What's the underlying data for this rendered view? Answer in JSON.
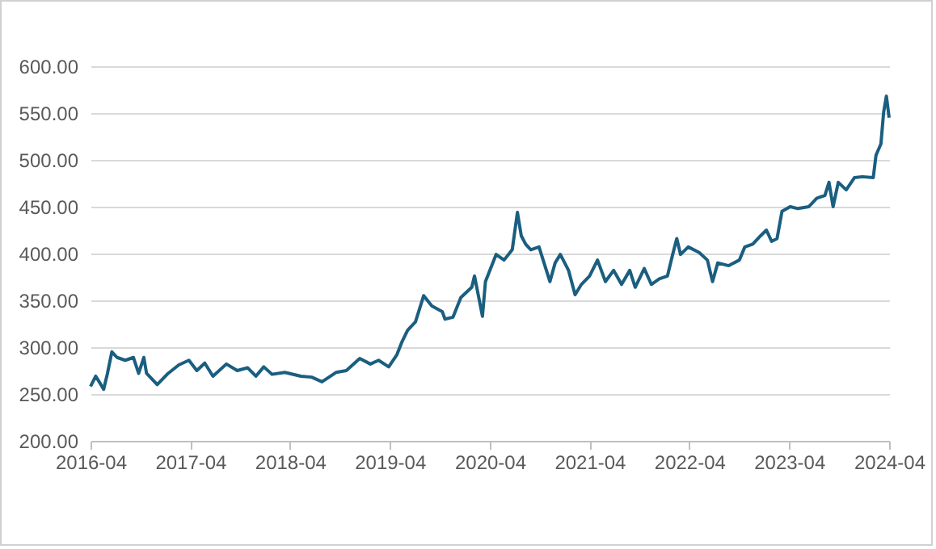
{
  "chart_data": {
    "type": "line",
    "x": [
      "2016-04-01",
      "2016-04-20",
      "2016-05-09",
      "2016-05-19",
      "2016-06-02",
      "2016-06-18",
      "2016-07-07",
      "2016-08-06",
      "2016-09-05",
      "2016-09-24",
      "2016-10-13",
      "2016-10-23",
      "2016-12-01",
      "2017-01-10",
      "2017-02-18",
      "2017-03-27",
      "2017-04-25",
      "2017-05-24",
      "2017-06-23",
      "2017-08-11",
      "2017-09-20",
      "2017-10-28",
      "2017-11-27",
      "2017-12-26",
      "2018-01-25",
      "2018-03-13",
      "2018-05-11",
      "2018-06-19",
      "2018-07-27",
      "2018-09-16",
      "2018-10-24",
      "2018-12-12",
      "2019-01-20",
      "2019-02-19",
      "2019-03-28",
      "2019-04-27",
      "2019-05-16",
      "2019-06-05",
      "2019-07-04",
      "2019-08-03",
      "2019-09-02",
      "2019-10-10",
      "2019-10-20",
      "2019-11-18",
      "2019-12-17",
      "2020-01-26",
      "2020-02-05",
      "2020-03-05",
      "2020-03-16",
      "2020-04-24",
      "2020-05-23",
      "2020-06-22",
      "2020-07-11",
      "2020-07-25",
      "2020-08-10",
      "2020-08-29",
      "2020-09-28",
      "2020-11-07",
      "2020-11-26",
      "2020-12-15",
      "2021-01-14",
      "2021-02-07",
      "2021-03-02",
      "2021-04-01",
      "2021-04-30",
      "2021-05-29",
      "2021-06-28",
      "2021-07-27",
      "2021-08-26",
      "2021-09-15",
      "2021-10-18",
      "2021-11-13",
      "2021-12-12",
      "2022-01-11",
      "2022-01-30",
      "2022-02-14",
      "2022-02-28",
      "2022-03-28",
      "2022-05-07",
      "2022-06-06",
      "2022-06-25",
      "2022-07-14",
      "2022-08-23",
      "2022-10-01",
      "2022-10-21",
      "2022-11-19",
      "2022-12-18",
      "2023-01-08",
      "2023-01-27",
      "2023-02-16",
      "2023-03-06",
      "2023-04-05",
      "2023-05-03",
      "2023-06-12",
      "2023-07-11",
      "2023-08-10",
      "2023-08-25",
      "2023-09-09",
      "2023-09-28",
      "2023-10-27",
      "2023-11-26",
      "2023-12-25",
      "2024-02-03",
      "2024-02-13",
      "2024-03-02",
      "2024-03-12",
      "2024-03-22",
      "2024-04-01"
    ],
    "series": [
      {
        "color": "#1a5e80",
        "values": [
          258,
          269,
          260,
          255,
          272,
          295,
          289,
          286,
          289,
          272,
          289,
          272,
          260,
          272,
          281,
          286,
          275,
          283,
          269,
          282,
          275,
          278,
          269,
          279,
          271,
          273,
          269,
          268,
          263,
          273,
          275,
          288,
          282,
          286,
          279,
          292,
          306,
          318,
          327,
          355,
          344,
          338,
          330,
          332,
          353,
          364,
          376,
          333,
          370,
          399,
          393,
          404,
          444,
          419,
          410,
          404,
          407,
          370,
          390,
          399,
          382,
          356,
          367,
          376,
          393,
          370,
          382,
          367,
          382,
          364,
          384,
          367,
          373,
          376,
          399,
          416,
          399,
          407,
          401,
          393,
          370,
          390,
          387,
          393,
          407,
          410,
          419,
          425,
          413,
          416,
          445,
          450,
          448,
          450,
          459,
          462,
          476,
          450,
          476,
          468,
          481,
          482,
          481,
          505,
          517,
          551,
          568,
          545
        ]
      }
    ],
    "xlim": [
      "2016-04",
      "2024-04"
    ],
    "xticks": [
      "2016-04",
      "2017-04",
      "2018-04",
      "2019-04",
      "2020-04",
      "2021-04",
      "2022-04",
      "2023-04",
      "2024-04"
    ],
    "ylim": [
      200,
      600
    ],
    "yticks": [
      {
        "value": 200,
        "label": "200.00"
      },
      {
        "value": 250,
        "label": "250.00"
      },
      {
        "value": 300,
        "label": "300.00"
      },
      {
        "value": 350,
        "label": "350.00"
      },
      {
        "value": 400,
        "label": "400.00"
      },
      {
        "value": 450,
        "label": "450.00"
      },
      {
        "value": 500,
        "label": "500.00"
      },
      {
        "value": 550,
        "label": "550.00"
      },
      {
        "value": 600,
        "label": "600.00"
      }
    ],
    "grid": "y"
  }
}
